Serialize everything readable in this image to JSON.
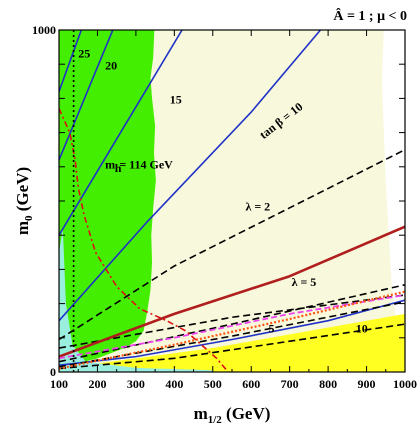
{
  "chart_data": {
    "type": "line",
    "title": "Â = 1 ; μ < 0",
    "xlabel": "m",
    "xlabel_sub": "1/2",
    "xlabel_unit": " (GeV)",
    "ylabel": "m",
    "ylabel_sub": "0",
    "ylabel_unit": " (GeV)",
    "xlim": [
      100,
      1000
    ],
    "ylim": [
      0,
      1000
    ],
    "x_ticks": [
      "100",
      "200",
      "300",
      "400",
      "500",
      "600",
      "700",
      "800",
      "900",
      "1000"
    ],
    "x_tick_values": [
      100,
      200,
      300,
      400,
      500,
      600,
      700,
      800,
      900,
      1000
    ],
    "y_ticks": [
      "0",
      "1000"
    ],
    "y_tick_values": [
      0,
      1000
    ],
    "colors": {
      "background": "#f8f8dc",
      "green_region": "#44ee00",
      "yellow_region": "#ffff22",
      "cyan_region": "#99eedd",
      "white_region": "#ffffff",
      "tanb": "#1f32c8",
      "lambda": "#000000",
      "mh": "#dd1111",
      "red_thick": "#b01e1e",
      "magenta": "#ee44ee",
      "orange_dotted": "#ff5511"
    },
    "regions": [
      {
        "color": "green_region",
        "polygon": [
          [
            100,
            0
          ],
          [
            100,
            1000
          ],
          [
            348,
            1000
          ],
          [
            345,
            920
          ],
          [
            338,
            860
          ],
          [
            342,
            800
          ],
          [
            350,
            720
          ],
          [
            347,
            640
          ],
          [
            352,
            560
          ],
          [
            345,
            480
          ],
          [
            340,
            400
          ],
          [
            342,
            320
          ],
          [
            338,
            240
          ],
          [
            330,
            180
          ],
          [
            320,
            120
          ],
          [
            300,
            90
          ],
          [
            270,
            70
          ],
          [
            200,
            40
          ],
          [
            130,
            20
          ],
          [
            100,
            0
          ]
        ]
      },
      {
        "color": "white_region",
        "polygon": [
          [
            945,
            1000
          ],
          [
            1000,
            1000
          ],
          [
            1000,
            0
          ],
          [
            990,
            0
          ],
          [
            985,
            100
          ],
          [
            975,
            170
          ],
          [
            965,
            260
          ],
          [
            958,
            400
          ],
          [
            950,
            550
          ],
          [
            945,
            700
          ],
          [
            940,
            850
          ],
          [
            945,
            1000
          ]
        ]
      },
      {
        "color": "yellow_region",
        "polygon": [
          [
            100,
            0
          ],
          [
            100,
            10
          ],
          [
            300,
            40
          ],
          [
            500,
            70
          ],
          [
            700,
            110
          ],
          [
            900,
            150
          ],
          [
            1000,
            170
          ],
          [
            1000,
            0
          ]
        ]
      },
      {
        "color": "cyan_region",
        "polygon": [
          [
            100,
            0
          ],
          [
            100,
            350
          ],
          [
            110,
            420
          ],
          [
            118,
            200
          ],
          [
            135,
            80
          ],
          [
            170,
            30
          ],
          [
            300,
            12
          ],
          [
            500,
            5
          ],
          [
            500,
            0
          ]
        ]
      }
    ],
    "series": [
      {
        "label": "25",
        "style": "tanb",
        "points": [
          [
            100,
            820
          ],
          [
            158,
            1000
          ]
        ]
      },
      {
        "label": "20",
        "style": "tanb",
        "points": [
          [
            100,
            620
          ],
          [
            240,
            1000
          ]
        ]
      },
      {
        "label": "15",
        "style": "tanb",
        "points": [
          [
            100,
            400
          ],
          [
            420,
            1000
          ]
        ]
      },
      {
        "label": "tan β = 10",
        "style": "tanb",
        "points": [
          [
            100,
            150
          ],
          [
            330,
            440
          ],
          [
            600,
            760
          ],
          [
            780,
            1000
          ]
        ]
      },
      {
        "label": "5",
        "style": "tanb",
        "points": [
          [
            100,
            20
          ],
          [
            300,
            45
          ],
          [
            550,
            95
          ],
          [
            800,
            150
          ],
          [
            1000,
            210
          ]
        ]
      },
      {
        "label": "10",
        "style": "lambda",
        "points": [
          [
            100,
            10
          ],
          [
            400,
            40
          ],
          [
            700,
            90
          ],
          [
            1000,
            140
          ]
        ]
      },
      {
        "label": "λ = 2",
        "style": "lambda",
        "points": [
          [
            100,
            95
          ],
          [
            400,
            310
          ],
          [
            700,
            480
          ],
          [
            1000,
            650
          ]
        ]
      },
      {
        "label": "",
        "style": "lambda",
        "points": [
          [
            100,
            30
          ],
          [
            550,
            140
          ],
          [
            1000,
            255
          ]
        ]
      },
      {
        "label": "",
        "style": "lambda",
        "points": [
          [
            100,
            15
          ],
          [
            550,
            105
          ],
          [
            1000,
            205
          ]
        ]
      },
      {
        "label": "λ = 5",
        "style": "lambda",
        "points": [
          [
            100,
            70
          ],
          [
            550,
            160
          ],
          [
            1000,
            225
          ]
        ]
      },
      {
        "label": "",
        "style": "red_thick",
        "points": [
          [
            100,
            45
          ],
          [
            400,
            170
          ],
          [
            700,
            280
          ],
          [
            1000,
            425
          ]
        ]
      },
      {
        "label": "",
        "style": "magenta",
        "points": [
          [
            100,
            40
          ],
          [
            400,
            100
          ],
          [
            700,
            170
          ],
          [
            1000,
            225
          ]
        ]
      },
      {
        "label": "",
        "style": "orange_dotted",
        "points": [
          [
            100,
            10
          ],
          [
            400,
            80
          ],
          [
            700,
            155
          ],
          [
            1000,
            235
          ]
        ]
      },
      {
        "label": "m_h = 114 GeV",
        "style": "mh",
        "points": [
          [
            100,
            770
          ],
          [
            128,
            700
          ],
          [
            142,
            620
          ],
          [
            150,
            540
          ],
          [
            165,
            460
          ],
          [
            195,
            350
          ],
          [
            250,
            250
          ],
          [
            310,
            185
          ],
          [
            380,
            150
          ],
          [
            430,
            120
          ],
          [
            470,
            80
          ],
          [
            510,
            40
          ],
          [
            540,
            0
          ]
        ]
      },
      {
        "label": "",
        "style": "lambda_dotted",
        "points": [
          [
            138,
            0
          ],
          [
            138,
            1000
          ]
        ]
      }
    ],
    "annotations": [
      {
        "text": "25",
        "x": 150,
        "y": 920
      },
      {
        "text": "20",
        "x": 220,
        "y": 885
      },
      {
        "text": "15",
        "x": 388,
        "y": 785
      },
      {
        "text": "tan β = 10",
        "x": 632,
        "y": 680,
        "rotate": -38
      },
      {
        "text": "m",
        "x": 220,
        "y": 595
      },
      {
        "text": "h",
        "x": 245,
        "y": 585
      },
      {
        "text": "= 114 GeV",
        "x": 257,
        "y": 595
      },
      {
        "text": "λ = 2",
        "x": 585,
        "y": 472
      },
      {
        "text": "λ = 5",
        "x": 705,
        "y": 252
      },
      {
        "text": "5",
        "x": 645,
        "y": 115
      },
      {
        "text": "10",
        "x": 872,
        "y": 115
      }
    ]
  }
}
